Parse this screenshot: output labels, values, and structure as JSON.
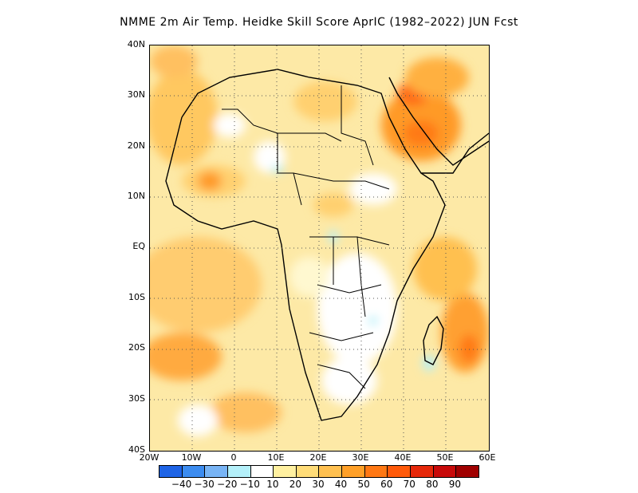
{
  "title": "NMME  2m Air Temp. Heidke Skill Score AprIC (1982–2022) JUN Fcst",
  "axes": {
    "y_ticks": [
      "40N",
      "30N",
      "20N",
      "10N",
      "EQ",
      "10S",
      "20S",
      "30S",
      "40S"
    ],
    "x_ticks": [
      "20W",
      "10W",
      "0",
      "10E",
      "20E",
      "30E",
      "40E",
      "50E",
      "60E"
    ]
  },
  "colorbar": {
    "colors": [
      "#1e64e6",
      "#3c8cf0",
      "#78b4f5",
      "#b4f0fa",
      "#ffffff",
      "#fff0a0",
      "#ffdc78",
      "#ffc050",
      "#ffa028",
      "#ff7814",
      "#ff5a0a",
      "#e6280a",
      "#c80a0a",
      "#a00000"
    ],
    "labels": [
      "−40",
      "−30",
      "−20",
      "−10",
      "10",
      "20",
      "30",
      "40",
      "50",
      "60",
      "70",
      "80",
      "90"
    ]
  },
  "chart_data": {
    "type": "heatmap",
    "title": "NMME  2m Air Temp. Heidke Skill Score AprIC (1982–2022) JUN Fcst",
    "x_range": [
      -20,
      60
    ],
    "y_range": [
      -40,
      40
    ],
    "x_ticks": [
      "20W",
      "10W",
      "0",
      "10E",
      "20E",
      "30E",
      "40E",
      "50E",
      "60E"
    ],
    "y_ticks": [
      "40N",
      "30N",
      "20N",
      "10N",
      "EQ",
      "10S",
      "20S",
      "30S",
      "40S"
    ],
    "color_levels": [
      -40,
      -30,
      -20,
      -10,
      10,
      20,
      30,
      40,
      50,
      60,
      70,
      80,
      90
    ],
    "grid": true,
    "regions": [
      {
        "area": "Arabian Peninsula / Middle East",
        "level": "60-70"
      },
      {
        "area": "West Africa coast",
        "level": "40-50"
      },
      {
        "area": "Southern Atlantic",
        "level": "30-50"
      },
      {
        "area": "Indian Ocean near Madagascar",
        "level": "50-60"
      },
      {
        "area": "Central / Southern Africa interior",
        "level": "10 to -10 (white)"
      },
      {
        "area": "Sahara",
        "level": "10-30"
      }
    ]
  }
}
